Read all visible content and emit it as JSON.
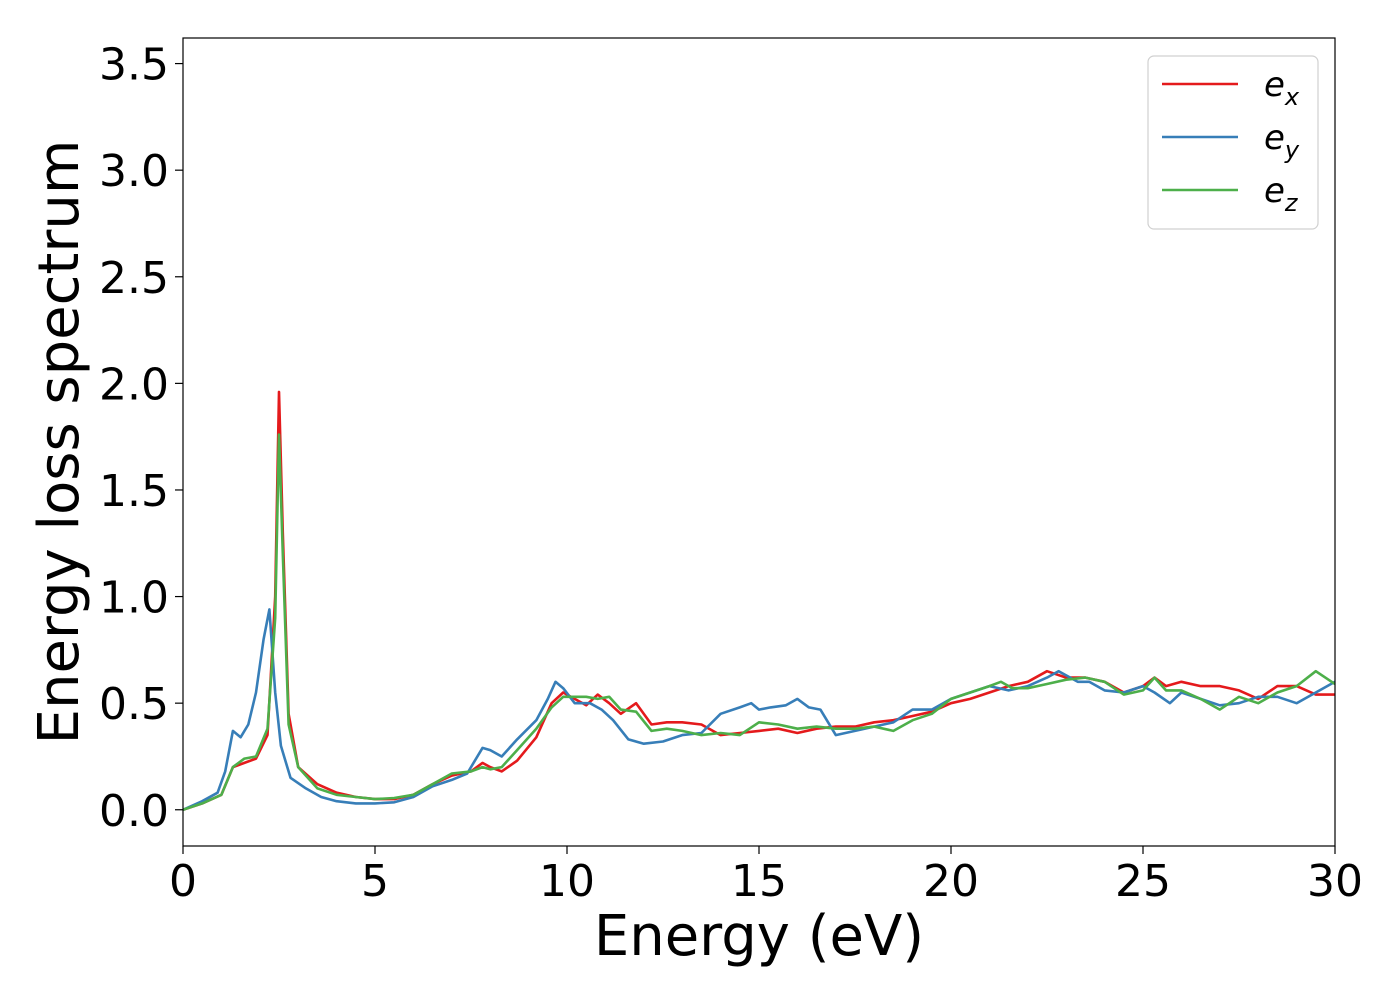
{
  "chart_data": {
    "type": "line",
    "title": "",
    "xlabel": "Energy (eV)",
    "ylabel": "Energy loss spectrum",
    "xlim": [
      0,
      30
    ],
    "ylim": [
      -0.17,
      3.62
    ],
    "xticks": [
      0,
      5,
      10,
      15,
      20,
      25,
      30
    ],
    "yticks": [
      0.0,
      0.5,
      1.0,
      1.5,
      2.0,
      2.5,
      3.0,
      3.5
    ],
    "xtick_labels": [
      "0",
      "5",
      "10",
      "15",
      "20",
      "25",
      "30"
    ],
    "ytick_labels": [
      "0.0",
      "0.5",
      "1.0",
      "1.5",
      "2.0",
      "2.5",
      "3.0",
      "3.5"
    ],
    "grid": false,
    "legend_position": "top-right",
    "series": [
      {
        "name": "e_x",
        "label_base": "e",
        "label_sub": "x",
        "color": "#e41a1c",
        "points": [
          [
            0,
            0
          ],
          [
            0.5,
            0.03
          ],
          [
            1.0,
            0.07
          ],
          [
            1.3,
            0.2
          ],
          [
            1.6,
            0.22
          ],
          [
            1.9,
            0.24
          ],
          [
            2.2,
            0.35
          ],
          [
            2.4,
            1.0
          ],
          [
            2.5,
            1.96
          ],
          [
            2.6,
            1.3
          ],
          [
            2.75,
            0.45
          ],
          [
            3.0,
            0.2
          ],
          [
            3.5,
            0.12
          ],
          [
            4.0,
            0.08
          ],
          [
            4.5,
            0.06
          ],
          [
            5.0,
            0.05
          ],
          [
            5.5,
            0.05
          ],
          [
            6.0,
            0.07
          ],
          [
            6.5,
            0.12
          ],
          [
            7.0,
            0.16
          ],
          [
            7.5,
            0.18
          ],
          [
            7.8,
            0.22
          ],
          [
            8.0,
            0.2
          ],
          [
            8.3,
            0.18
          ],
          [
            8.7,
            0.23
          ],
          [
            9.2,
            0.34
          ],
          [
            9.6,
            0.5
          ],
          [
            9.9,
            0.55
          ],
          [
            10.2,
            0.52
          ],
          [
            10.5,
            0.49
          ],
          [
            10.8,
            0.54
          ],
          [
            11.1,
            0.5
          ],
          [
            11.4,
            0.45
          ],
          [
            11.8,
            0.5
          ],
          [
            12.2,
            0.4
          ],
          [
            12.6,
            0.41
          ],
          [
            13.0,
            0.41
          ],
          [
            13.5,
            0.4
          ],
          [
            14.0,
            0.35
          ],
          [
            14.5,
            0.36
          ],
          [
            15.0,
            0.37
          ],
          [
            15.5,
            0.38
          ],
          [
            16.0,
            0.36
          ],
          [
            16.5,
            0.38
          ],
          [
            17.0,
            0.39
          ],
          [
            17.5,
            0.39
          ],
          [
            18.0,
            0.41
          ],
          [
            18.5,
            0.42
          ],
          [
            19.0,
            0.44
          ],
          [
            19.5,
            0.46
          ],
          [
            20.0,
            0.5
          ],
          [
            20.5,
            0.52
          ],
          [
            21.0,
            0.55
          ],
          [
            21.5,
            0.58
          ],
          [
            22.0,
            0.6
          ],
          [
            22.5,
            0.65
          ],
          [
            23.0,
            0.62
          ],
          [
            23.5,
            0.62
          ],
          [
            24.0,
            0.6
          ],
          [
            24.5,
            0.55
          ],
          [
            25.0,
            0.58
          ],
          [
            25.3,
            0.62
          ],
          [
            25.6,
            0.58
          ],
          [
            26.0,
            0.6
          ],
          [
            26.5,
            0.58
          ],
          [
            27.0,
            0.58
          ],
          [
            27.5,
            0.56
          ],
          [
            28.0,
            0.52
          ],
          [
            28.5,
            0.58
          ],
          [
            29.0,
            0.58
          ],
          [
            29.5,
            0.54
          ],
          [
            30.0,
            0.54
          ]
        ]
      },
      {
        "name": "e_y",
        "label_base": "e",
        "label_sub": "y",
        "color": "#377eb8",
        "points": [
          [
            0,
            0
          ],
          [
            0.5,
            0.04
          ],
          [
            0.9,
            0.08
          ],
          [
            1.1,
            0.18
          ],
          [
            1.3,
            0.37
          ],
          [
            1.5,
            0.34
          ],
          [
            1.7,
            0.4
          ],
          [
            1.9,
            0.55
          ],
          [
            2.1,
            0.8
          ],
          [
            2.25,
            0.94
          ],
          [
            2.4,
            0.55
          ],
          [
            2.55,
            0.3
          ],
          [
            2.8,
            0.15
          ],
          [
            3.2,
            0.1
          ],
          [
            3.6,
            0.06
          ],
          [
            4.0,
            0.04
          ],
          [
            4.5,
            0.03
          ],
          [
            5.0,
            0.03
          ],
          [
            5.5,
            0.035
          ],
          [
            6.0,
            0.06
          ],
          [
            6.5,
            0.11
          ],
          [
            7.0,
            0.14
          ],
          [
            7.4,
            0.17
          ],
          [
            7.8,
            0.29
          ],
          [
            8.0,
            0.28
          ],
          [
            8.3,
            0.25
          ],
          [
            8.7,
            0.33
          ],
          [
            9.2,
            0.42
          ],
          [
            9.5,
            0.52
          ],
          [
            9.7,
            0.6
          ],
          [
            9.9,
            0.57
          ],
          [
            10.2,
            0.5
          ],
          [
            10.6,
            0.5
          ],
          [
            10.9,
            0.47
          ],
          [
            11.2,
            0.42
          ],
          [
            11.6,
            0.33
          ],
          [
            12.0,
            0.31
          ],
          [
            12.5,
            0.32
          ],
          [
            13.0,
            0.35
          ],
          [
            13.5,
            0.36
          ],
          [
            14.0,
            0.45
          ],
          [
            14.5,
            0.48
          ],
          [
            14.8,
            0.5
          ],
          [
            15.0,
            0.47
          ],
          [
            15.3,
            0.48
          ],
          [
            15.7,
            0.49
          ],
          [
            16.0,
            0.52
          ],
          [
            16.3,
            0.48
          ],
          [
            16.6,
            0.47
          ],
          [
            17.0,
            0.35
          ],
          [
            17.5,
            0.37
          ],
          [
            18.0,
            0.39
          ],
          [
            18.5,
            0.41
          ],
          [
            19.0,
            0.47
          ],
          [
            19.5,
            0.47
          ],
          [
            20.0,
            0.52
          ],
          [
            20.5,
            0.55
          ],
          [
            21.0,
            0.58
          ],
          [
            21.5,
            0.56
          ],
          [
            22.0,
            0.58
          ],
          [
            22.5,
            0.62
          ],
          [
            22.8,
            0.65
          ],
          [
            23.0,
            0.63
          ],
          [
            23.3,
            0.6
          ],
          [
            23.6,
            0.6
          ],
          [
            24.0,
            0.56
          ],
          [
            24.5,
            0.55
          ],
          [
            25.0,
            0.58
          ],
          [
            25.3,
            0.55
          ],
          [
            25.7,
            0.5
          ],
          [
            26.0,
            0.55
          ],
          [
            26.5,
            0.52
          ],
          [
            27.0,
            0.49
          ],
          [
            27.5,
            0.5
          ],
          [
            28.0,
            0.53
          ],
          [
            28.5,
            0.53
          ],
          [
            29.0,
            0.5
          ],
          [
            29.5,
            0.55
          ],
          [
            30.0,
            0.6
          ]
        ]
      },
      {
        "name": "e_z",
        "label_base": "e",
        "label_sub": "z",
        "color": "#4daf4a",
        "points": [
          [
            0,
            0
          ],
          [
            0.5,
            0.03
          ],
          [
            1.0,
            0.07
          ],
          [
            1.3,
            0.2
          ],
          [
            1.6,
            0.24
          ],
          [
            1.9,
            0.25
          ],
          [
            2.2,
            0.38
          ],
          [
            2.4,
            0.9
          ],
          [
            2.5,
            1.76
          ],
          [
            2.6,
            1.2
          ],
          [
            2.75,
            0.4
          ],
          [
            3.0,
            0.2
          ],
          [
            3.5,
            0.1
          ],
          [
            4.0,
            0.07
          ],
          [
            4.5,
            0.06
          ],
          [
            5.0,
            0.05
          ],
          [
            5.5,
            0.055
          ],
          [
            6.0,
            0.07
          ],
          [
            6.5,
            0.12
          ],
          [
            7.0,
            0.17
          ],
          [
            7.5,
            0.18
          ],
          [
            7.8,
            0.2
          ],
          [
            8.0,
            0.19
          ],
          [
            8.3,
            0.2
          ],
          [
            8.7,
            0.28
          ],
          [
            9.2,
            0.38
          ],
          [
            9.6,
            0.48
          ],
          [
            9.9,
            0.53
          ],
          [
            10.2,
            0.53
          ],
          [
            10.5,
            0.53
          ],
          [
            10.8,
            0.52
          ],
          [
            11.1,
            0.53
          ],
          [
            11.4,
            0.47
          ],
          [
            11.8,
            0.46
          ],
          [
            12.2,
            0.37
          ],
          [
            12.6,
            0.38
          ],
          [
            13.0,
            0.37
          ],
          [
            13.5,
            0.35
          ],
          [
            14.0,
            0.36
          ],
          [
            14.5,
            0.35
          ],
          [
            15.0,
            0.41
          ],
          [
            15.5,
            0.4
          ],
          [
            16.0,
            0.38
          ],
          [
            16.5,
            0.39
          ],
          [
            17.0,
            0.38
          ],
          [
            17.5,
            0.38
          ],
          [
            18.0,
            0.39
          ],
          [
            18.5,
            0.37
          ],
          [
            19.0,
            0.42
          ],
          [
            19.5,
            0.45
          ],
          [
            20.0,
            0.52
          ],
          [
            20.5,
            0.55
          ],
          [
            21.0,
            0.58
          ],
          [
            21.3,
            0.6
          ],
          [
            21.6,
            0.57
          ],
          [
            22.0,
            0.57
          ],
          [
            22.5,
            0.59
          ],
          [
            23.0,
            0.61
          ],
          [
            23.5,
            0.62
          ],
          [
            24.0,
            0.6
          ],
          [
            24.5,
            0.54
          ],
          [
            25.0,
            0.56
          ],
          [
            25.3,
            0.62
          ],
          [
            25.6,
            0.56
          ],
          [
            26.0,
            0.56
          ],
          [
            26.5,
            0.52
          ],
          [
            27.0,
            0.47
          ],
          [
            27.5,
            0.53
          ],
          [
            28.0,
            0.5
          ],
          [
            28.5,
            0.55
          ],
          [
            29.0,
            0.58
          ],
          [
            29.5,
            0.65
          ],
          [
            30.0,
            0.59
          ]
        ]
      }
    ]
  }
}
